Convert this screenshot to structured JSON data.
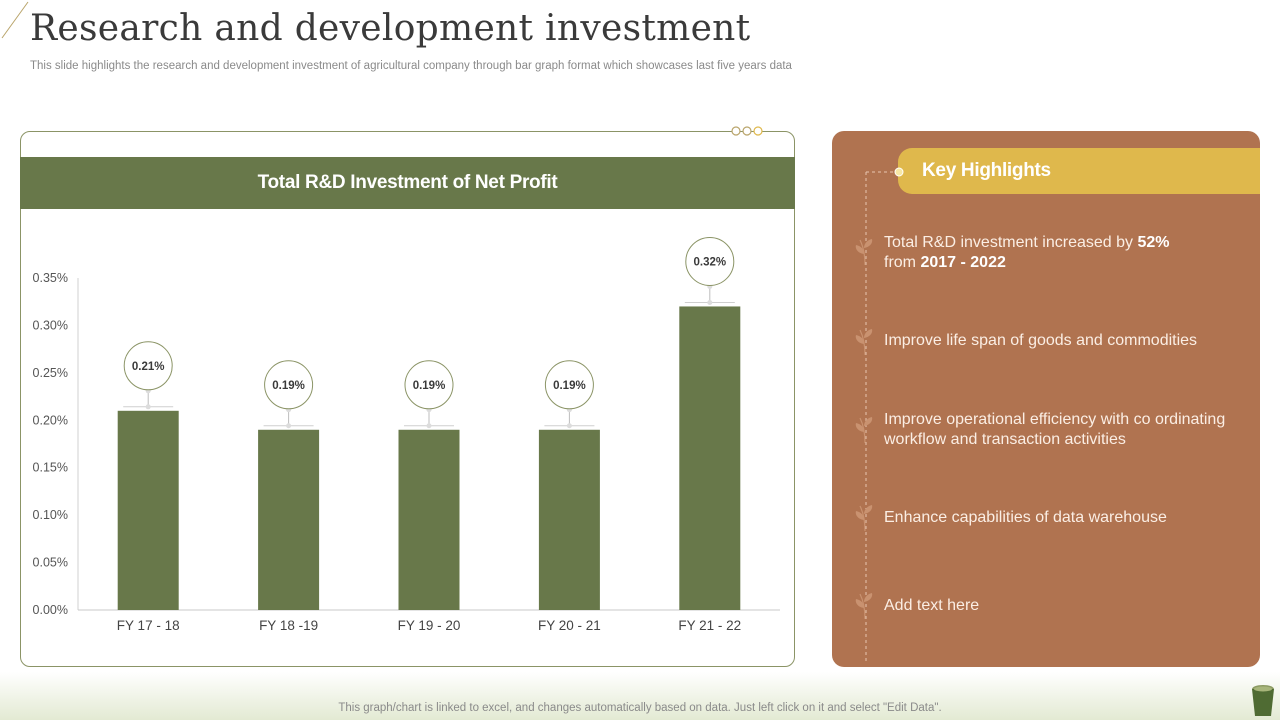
{
  "page": {
    "title": "Research and development investment",
    "subtitle": "This slide highlights the research and development investment of agricultural company through bar graph format which showcases last five years data",
    "footer_note": "This graph/chart is linked to excel, and changes automatically based on data. Just left click on it and select \"Edit Data\"."
  },
  "chart_data": {
    "type": "bar",
    "title": "Total R&D Investment of Net Profit",
    "categories": [
      "FY 17 - 18",
      "FY 18 -19",
      "FY 19 - 20",
      "FY 20 - 21",
      "FY 21 - 22"
    ],
    "values": [
      0.21,
      0.19,
      0.19,
      0.19,
      0.32
    ],
    "data_labels": [
      "0.21%",
      "0.19%",
      "0.19%",
      "0.19%",
      "0.32%"
    ],
    "yticks": [
      "0.00%",
      "0.05%",
      "0.10%",
      "0.15%",
      "0.20%",
      "0.25%",
      "0.30%",
      "0.35%"
    ],
    "ylim": [
      0,
      0.35
    ],
    "grid": false,
    "bar_color": "#68784a"
  },
  "highlights": {
    "title": "Key Highlights",
    "items": [
      {
        "pre": "Total R&D investment  increased by ",
        "b1": "52%",
        "mid": "from ",
        "b2": "2017 - 2022"
      },
      {
        "text": "Improve life span of goods and commodities"
      },
      {
        "text": "Improve operational efficiency with co ordinating workflow and transaction activities"
      },
      {
        "text": "Enhance capabilities of data warehouse"
      },
      {
        "text": "Add text here"
      }
    ],
    "panel_color": "#b07350",
    "accent_color": "#dfb84c"
  }
}
